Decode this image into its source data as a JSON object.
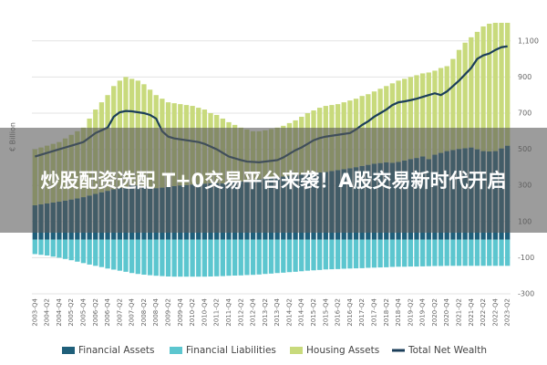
{
  "chart_data": {
    "type": "stacked-bar-line",
    "y_label": "€ Billion",
    "categories": [
      "2003-Q4",
      null,
      "2004-Q2",
      null,
      "2004-Q4",
      null,
      "2005-Q2",
      null,
      "2005-Q4",
      null,
      "2006-Q2",
      null,
      "2006-Q4",
      null,
      "2007-Q2",
      null,
      "2007-Q4",
      null,
      "2008-Q2",
      null,
      "2008-Q4",
      null,
      "2009-Q2",
      null,
      "2009-Q4",
      null,
      "2010-Q2",
      null,
      "2010-Q4",
      null,
      "2011-Q2",
      null,
      "2011-Q4",
      null,
      "2012-Q2",
      null,
      "2012-Q4",
      null,
      "2013-Q2",
      null,
      "2013-Q4",
      null,
      "2014-Q2",
      null,
      "2014-Q4",
      null,
      "2015-Q2",
      null,
      "2015-Q4",
      null,
      "2016-Q2",
      null,
      "2016-Q4",
      null,
      "2017-Q2",
      null,
      "2017-Q4",
      null,
      "2018-Q2",
      null,
      "2018-Q4",
      null,
      "2019-Q2",
      null,
      "2019-Q4",
      null,
      "2020-Q2",
      null,
      "2020-Q4",
      null,
      "2021-Q2",
      null,
      "2021-Q4",
      null,
      "2022-Q2",
      null,
      "2022-Q4",
      null,
      "2023-Q2"
    ],
    "series": [
      {
        "name": "Financial Assets",
        "color": "#1f5f7a",
        "kind": "bar",
        "stack": "up",
        "values": [
          190,
          195,
          200,
          205,
          210,
          216,
          222,
          228,
          235,
          244,
          253,
          262,
          270,
          278,
          286,
          294,
          300,
          300,
          296,
          290,
          285,
          288,
          292,
          296,
          300,
          302,
          305,
          308,
          310,
          312,
          313,
          311,
          315,
          318,
          322,
          326,
          330,
          334,
          338,
          342,
          345,
          349,
          353,
          356,
          360,
          364,
          368,
          372,
          375,
          380,
          385,
          390,
          395,
          401,
          408,
          414,
          420,
          424,
          428,
          425,
          430,
          438,
          446,
          452,
          460,
          445,
          470,
          480,
          490,
          496,
          502,
          506,
          510,
          500,
          490,
          488,
          490,
          505,
          520
        ]
      },
      {
        "name": "Financial Liabilities",
        "color": "#5cc6cf",
        "kind": "bar",
        "stack": "down",
        "values": [
          -80,
          -84,
          -88,
          -94,
          -100,
          -107,
          -114,
          -122,
          -130,
          -138,
          -145,
          -152,
          -160,
          -166,
          -172,
          -178,
          -185,
          -190,
          -194,
          -197,
          -200,
          -202,
          -204,
          -205,
          -205,
          -205,
          -205,
          -205,
          -205,
          -204,
          -203,
          -202,
          -200,
          -199,
          -198,
          -196,
          -195,
          -193,
          -190,
          -188,
          -185,
          -183,
          -180,
          -178,
          -175,
          -172,
          -170,
          -168,
          -165,
          -164,
          -163,
          -161,
          -160,
          -159,
          -158,
          -156,
          -155,
          -154,
          -153,
          -151,
          -150,
          -150,
          -149,
          -149,
          -148,
          -147,
          -146,
          -146,
          -145,
          -145,
          -145,
          -145,
          -145,
          -145,
          -145,
          -145,
          -145,
          -145,
          -145
        ]
      },
      {
        "name": "Housing Assets",
        "color": "#c8da7c",
        "kind": "bar",
        "stack": "up",
        "values": [
          310,
          315,
          320,
          325,
          330,
          344,
          358,
          372,
          385,
          426,
          467,
          498,
          530,
          572,
          594,
          606,
          590,
          580,
          564,
          540,
          515,
          492,
          468,
          459,
          450,
          443,
          435,
          422,
          410,
          388,
          377,
          359,
          335,
          317,
          298,
          284,
          270,
          266,
          267,
          270,
          275,
          281,
          292,
          304,
          320,
          336,
          347,
          358,
          365,
          365,
          365,
          370,
          375,
          379,
          387,
          391,
          400,
          411,
          422,
          440,
          450,
          452,
          454,
          458,
          460,
          480,
          465,
          470,
          470,
          504,
          548,
          584,
          610,
          650,
          690,
          707,
          710,
          695,
          680
        ]
      },
      {
        "name": "Total Net Wealth",
        "color": "#1b3e5a",
        "kind": "line",
        "values": [
          460,
          470,
          480,
          490,
          500,
          510,
          520,
          530,
          540,
          565,
          590,
          605,
          620,
          680,
          705,
          712,
          710,
          705,
          700,
          690,
          670,
          600,
          570,
          560,
          555,
          550,
          545,
          540,
          530,
          515,
          500,
          480,
          460,
          450,
          440,
          432,
          430,
          428,
          432,
          436,
          440,
          455,
          475,
          495,
          510,
          530,
          550,
          562,
          570,
          575,
          580,
          585,
          590,
          610,
          635,
          655,
          680,
          700,
          720,
          745,
          760,
          765,
          772,
          780,
          790,
          800,
          810,
          800,
          820,
          850,
          880,
          915,
          950,
          1000,
          1020,
          1030,
          1050,
          1065,
          1070
        ]
      }
    ],
    "ylim": [
      -300,
      1200
    ],
    "yticks": [
      -300,
      -100,
      100,
      300,
      500,
      700,
      900,
      {
        "value": 1100,
        "label": "1,100"
      }
    ],
    "grid": true,
    "legend": "bottom"
  },
  "overlay_text": "炒股配资选配 T+0交易平台来袭！A股交易新时代开启"
}
